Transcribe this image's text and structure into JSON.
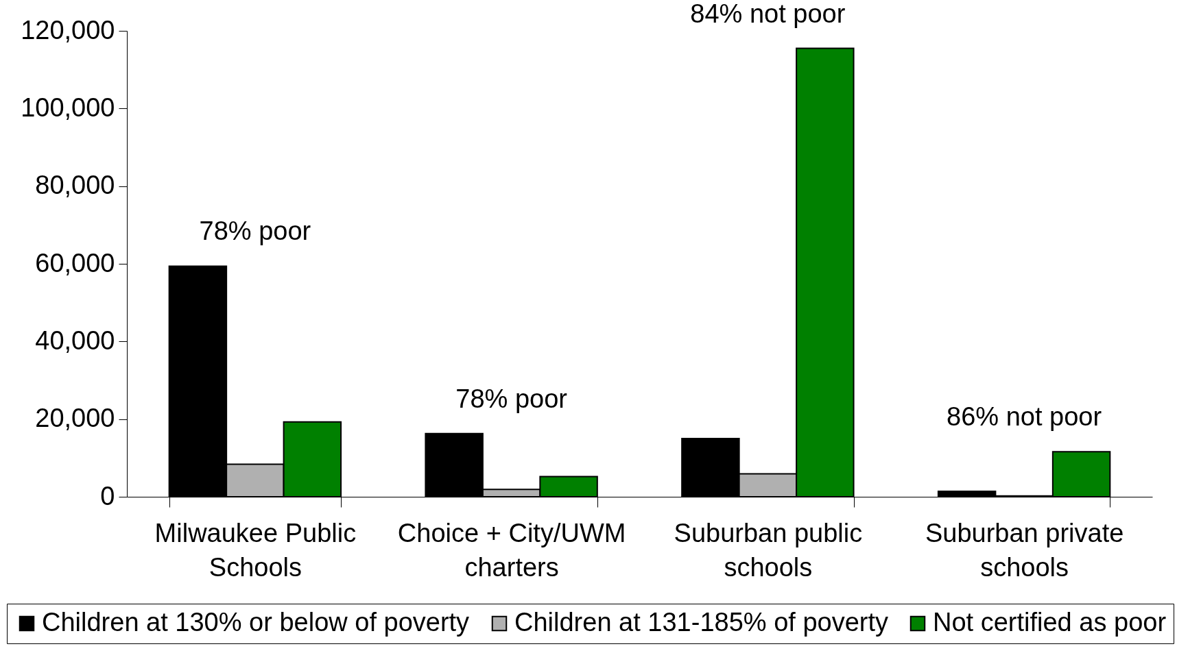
{
  "chart_data": {
    "type": "bar",
    "categories": [
      "Milwaukee Public Schools",
      "Choice + City/UWM charters",
      "Suburban public schools",
      "Suburban private schools"
    ],
    "series": [
      {
        "name": "Children at 130% or below of poverty",
        "color": "#000000",
        "values": [
          59400,
          16300,
          15000,
          1400
        ]
      },
      {
        "name": "Children at 131-185% of poverty",
        "color": "#b0b0b0",
        "values": [
          8400,
          1900,
          5900,
          200
        ]
      },
      {
        "name": "Not certified as poor",
        "color": "#008000",
        "values": [
          19300,
          5200,
          115500,
          11600
        ]
      }
    ],
    "ylim": [
      0,
      120000
    ],
    "yticks": [
      0,
      {
        "value": 20000,
        "label": "20,000"
      },
      {
        "value": 40000,
        "label": "40,000"
      },
      {
        "value": 60000,
        "label": "60,000"
      },
      {
        "value": 80000,
        "label": "80,000"
      },
      {
        "value": 100000,
        "label": "100,000"
      },
      {
        "value": 120000,
        "label": "120,000"
      }
    ],
    "annotations": [
      "78% poor",
      "78% poor",
      "84% not poor",
      "86% not poor"
    ],
    "legend": "bottom"
  }
}
